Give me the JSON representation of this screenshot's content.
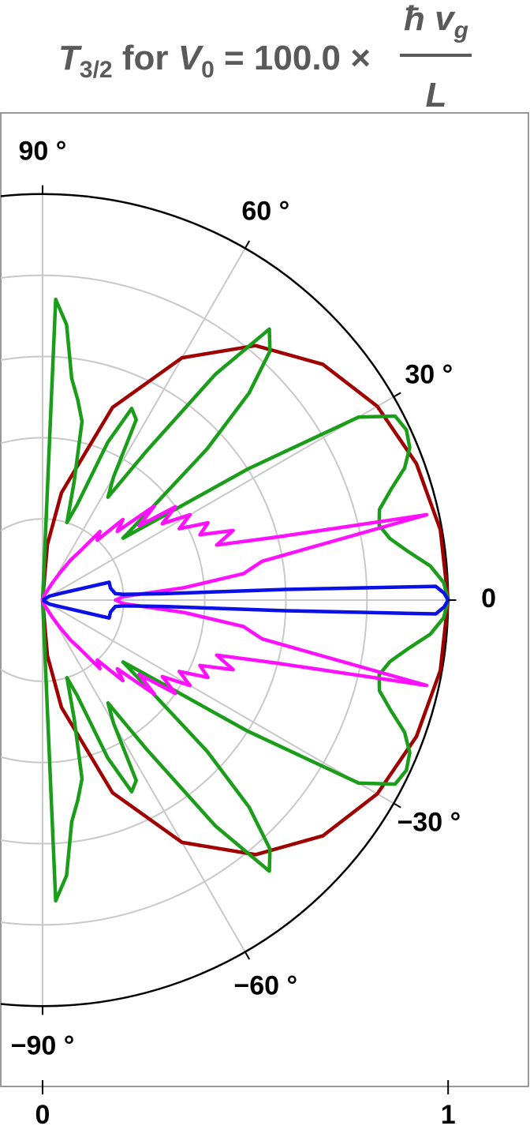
{
  "chart_data": {
    "type": "polar",
    "title": {
      "main": [
        "T",
        "3/2",
        " for ",
        "V",
        "0",
        " = 100.0 ×"
      ],
      "numerator": [
        "ħ v",
        "g"
      ],
      "denominator": "L"
    },
    "xlim": [
      -0.103,
      1.198
    ],
    "ylim": [
      -1.196,
      1.198
    ],
    "xticks": [
      0,
      1
    ],
    "rgrid": [
      0.2,
      0.4,
      0.6,
      0.8
    ],
    "rmax": 1,
    "thetagrid": [
      90,
      60,
      30,
      0,
      -30,
      -60,
      -90
    ],
    "thetaticks": [
      {
        "value": 90,
        "label": "90 °"
      },
      {
        "value": 60,
        "label": "60 °"
      },
      {
        "value": 30,
        "label": "30 °"
      },
      0,
      {
        "value": -30,
        "label": "−30 °"
      },
      {
        "value": -60,
        "label": "−60 °"
      },
      {
        "value": -90,
        "label": "−90 °"
      }
    ],
    "grid": true,
    "series": [
      {
        "color": "#a00000",
        "theta": [
          -90,
          -85,
          -80,
          -70,
          -60,
          -50,
          -40,
          -30,
          -20,
          -10,
          0,
          10,
          20,
          30,
          40,
          50,
          60,
          70,
          80,
          85,
          90
        ],
        "r": [
          0,
          0.137,
          0.268,
          0.504,
          0.688,
          0.817,
          0.902,
          0.953,
          0.981,
          0.996,
          1,
          0.996,
          0.981,
          0.953,
          0.902,
          0.817,
          0.688,
          0.504,
          0.268,
          0.137,
          0
        ]
      },
      {
        "color": "#1a9e1a",
        "theta": [
          -90,
          -87.5,
          -85,
          -82.5,
          -80,
          -77.5,
          -75,
          -72.5,
          -70,
          -67.5,
          -65,
          -62.5,
          -60,
          -57.5,
          -55,
          -52.5,
          -50,
          -47.5,
          -45,
          -42.5,
          -40,
          -37.5,
          -35,
          -32.5,
          -30,
          -27.5,
          -25,
          -22.5,
          -20,
          -17.5,
          -15,
          -12.5,
          -10,
          -7.5,
          -5,
          -2.5,
          0,
          2.5,
          5,
          7.5,
          10,
          12.5,
          15,
          17.5,
          20,
          22.5,
          25,
          27.5,
          30,
          32.5,
          35,
          37.5,
          40,
          42.5,
          45,
          47.5,
          50,
          52.5,
          55,
          57.5,
          60,
          62.5,
          65,
          67.5,
          70,
          72.5,
          75,
          77.5,
          80,
          82.5,
          85,
          87.5,
          90
        ],
        "r": [
          0,
          0.74,
          0.68,
          0.55,
          0.5,
          0.45,
          0.3,
          0.2,
          0.25,
          0.42,
          0.52,
          0.5,
          0.35,
          0.3,
          0.45,
          0.7,
          0.87,
          0.83,
          0.72,
          0.55,
          0.35,
          0.25,
          0.35,
          0.6,
          0.9,
          0.98,
          0.99,
          0.98,
          0.95,
          0.9,
          0.86,
          0.85,
          0.87,
          0.91,
          0.96,
          0.99,
          1,
          0.99,
          0.96,
          0.91,
          0.87,
          0.85,
          0.86,
          0.9,
          0.95,
          0.98,
          0.99,
          0.98,
          0.9,
          0.6,
          0.35,
          0.25,
          0.35,
          0.55,
          0.72,
          0.83,
          0.87,
          0.7,
          0.45,
          0.3,
          0.35,
          0.5,
          0.52,
          0.42,
          0.25,
          0.2,
          0.3,
          0.45,
          0.5,
          0.55,
          0.68,
          0.74,
          0
        ]
      },
      {
        "color": "#ff10ff",
        "theta": [
          -90,
          -87.5,
          -85,
          -82.5,
          -80,
          -77.5,
          -75,
          -72.5,
          -70,
          -67.5,
          -65,
          -62.5,
          -60,
          -57.5,
          -55,
          -52.5,
          -50,
          -47.5,
          -45,
          -42.5,
          -40,
          -37.5,
          -35,
          -32.5,
          -30,
          -27.5,
          -25,
          -22.5,
          -20,
          -17.5,
          -15,
          -12.5,
          -10,
          -7.5,
          -5,
          -2.5,
          0,
          2.5,
          5,
          7.5,
          10,
          12.5,
          15,
          17.5,
          20,
          22.5,
          25,
          27.5,
          30,
          32.5,
          35,
          37.5,
          40,
          42.5,
          45,
          47.5,
          50,
          52.5,
          55,
          57.5,
          60,
          62.5,
          65,
          67.5,
          70,
          72.5,
          75,
          77.5,
          80,
          82.5,
          85,
          87.5,
          90
        ],
        "r": [
          0,
          0,
          0,
          0,
          0,
          0,
          0.01,
          0.01,
          0.01,
          0.02,
          0.02,
          0.03,
          0.05,
          0.08,
          0.12,
          0.15,
          0.22,
          0.2,
          0.28,
          0.25,
          0.36,
          0.3,
          0.4,
          0.35,
          0.42,
          0.38,
          0.45,
          0.42,
          0.5,
          0.45,
          0.6,
          0.97,
          0.55,
          0.5,
          0.35,
          0.2,
          0.18,
          0.2,
          0.35,
          0.5,
          0.55,
          0.97,
          0.6,
          0.45,
          0.5,
          0.42,
          0.45,
          0.38,
          0.42,
          0.35,
          0.4,
          0.3,
          0.36,
          0.25,
          0.28,
          0.2,
          0.22,
          0.15,
          0.12,
          0.08,
          0.05,
          0.03,
          0.02,
          0.02,
          0.01,
          0.01,
          0.01,
          0,
          0,
          0,
          0,
          0,
          0
        ]
      },
      {
        "color": "#0a10e6",
        "theta": [
          -90,
          -30,
          -20,
          -15,
          -10,
          -5,
          -4,
          -3,
          -2.5,
          -2,
          -1,
          0,
          1,
          2,
          2.5,
          3,
          4,
          5,
          10,
          15,
          20,
          30,
          90
        ],
        "r": [
          0,
          0.02,
          0.05,
          0.17,
          0.17,
          0.18,
          0.2,
          0.3,
          0.6,
          0.97,
          0.99,
          1,
          0.99,
          0.97,
          0.6,
          0.3,
          0.2,
          0.18,
          0.17,
          0.17,
          0.05,
          0.02,
          0
        ]
      }
    ]
  }
}
